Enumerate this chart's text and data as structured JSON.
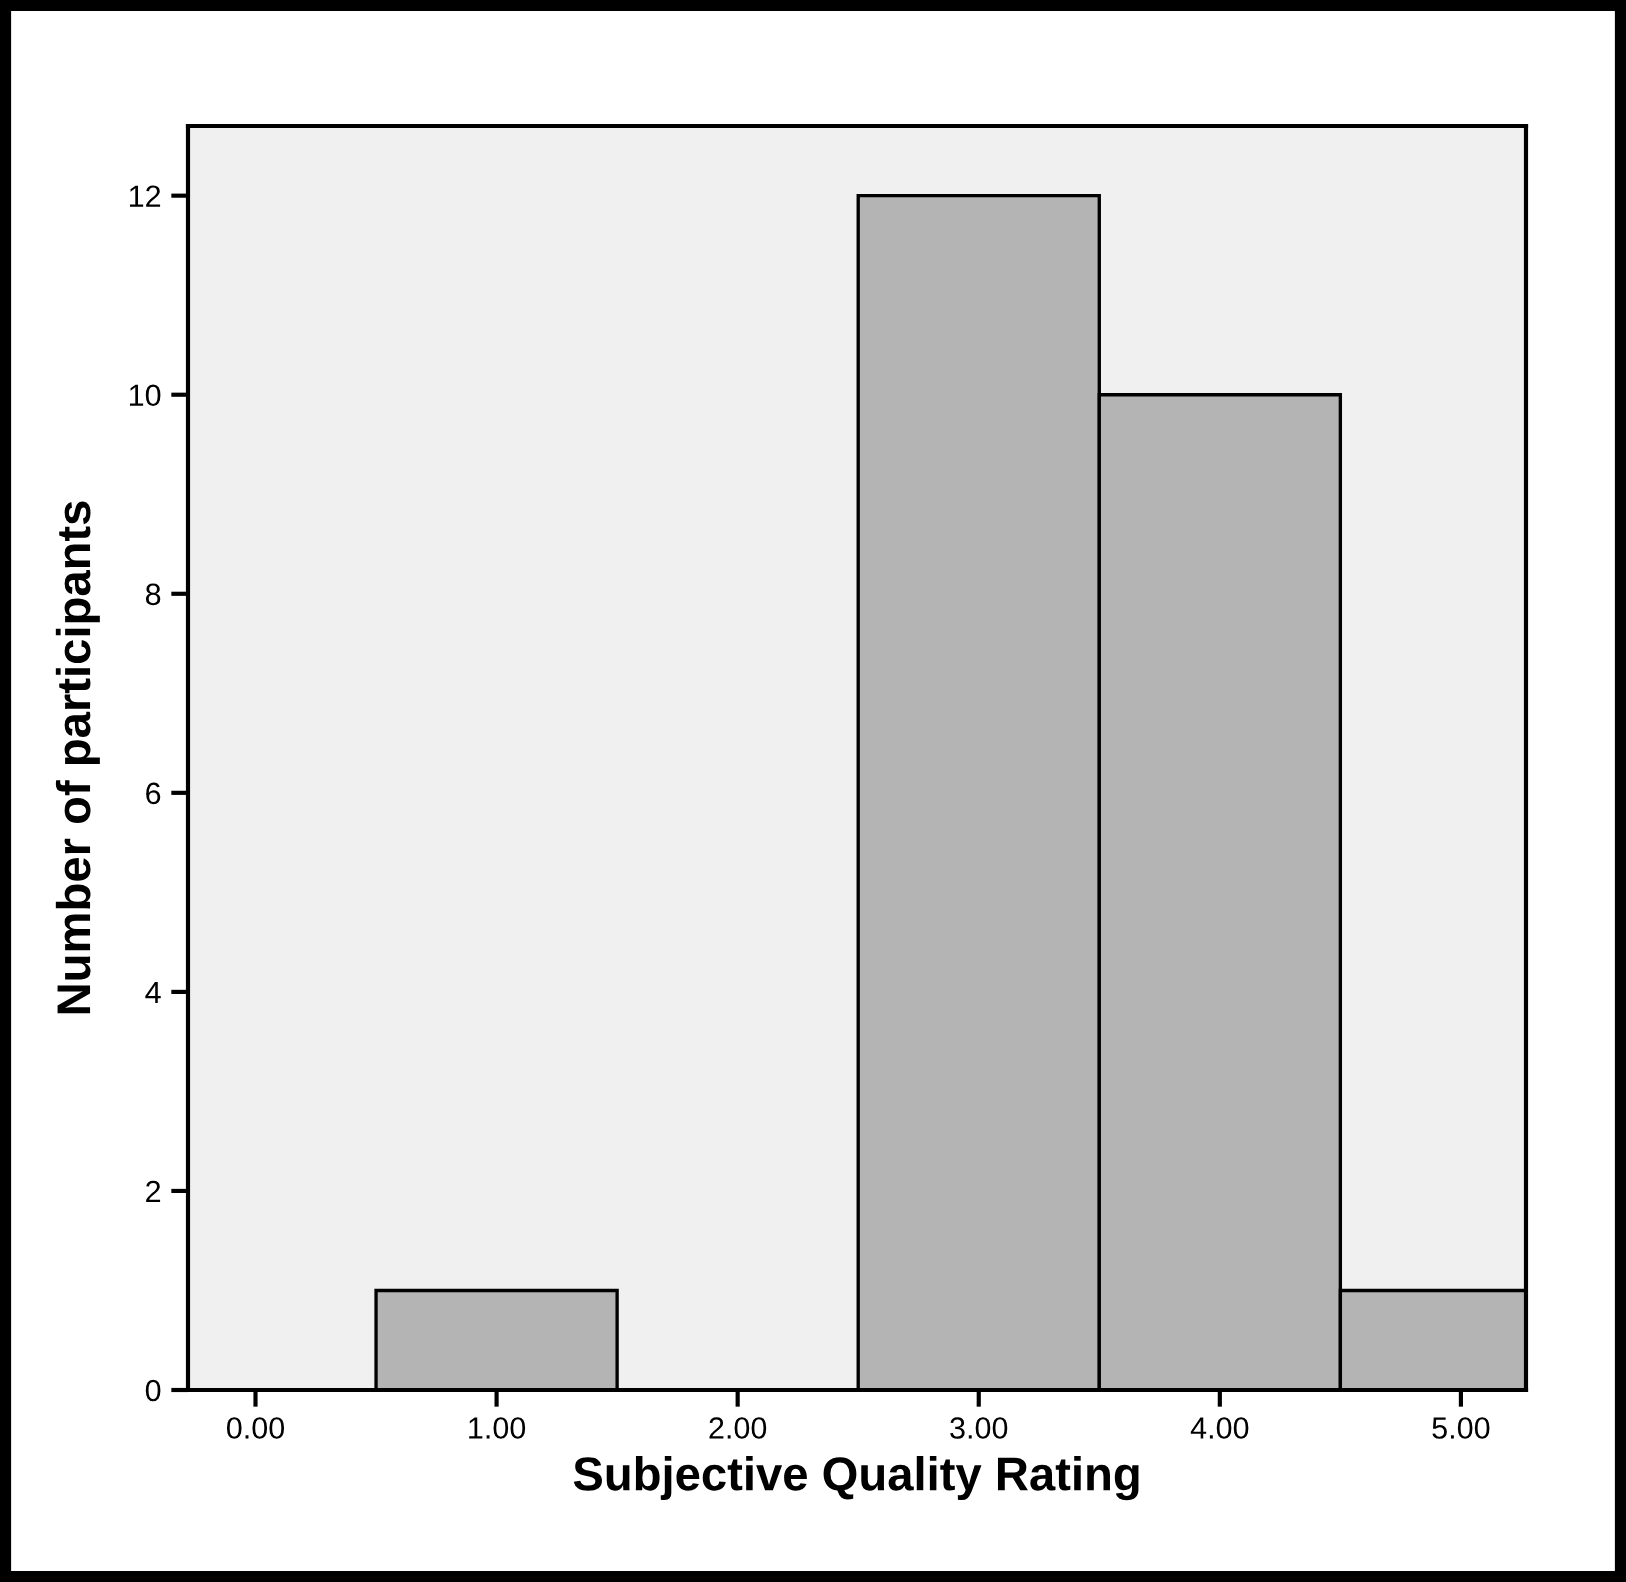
{
  "chart_data": {
    "type": "histogram",
    "xlabel": "Subjective Quality Rating",
    "ylabel": "Number of participants",
    "bins": [
      0.5,
      1.5,
      2.5,
      3.5,
      4.5,
      5.5
    ],
    "values": [
      1,
      0,
      12,
      10,
      1
    ],
    "color": "#b4b4b4",
    "xlim": [
      -0.28,
      5.27
    ],
    "xticks": [
      {
        "value": 0,
        "label": "0.00"
      },
      {
        "value": 1,
        "label": "1.00"
      },
      {
        "value": 2,
        "label": "2.00"
      },
      {
        "value": 3,
        "label": "3.00"
      },
      {
        "value": 4,
        "label": "4.00"
      },
      {
        "value": 5,
        "label": "5.00"
      }
    ],
    "ylim": [
      0,
      12.7
    ],
    "yticks": [
      0,
      2,
      4,
      6,
      8,
      10,
      12
    ],
    "grid": false
  }
}
